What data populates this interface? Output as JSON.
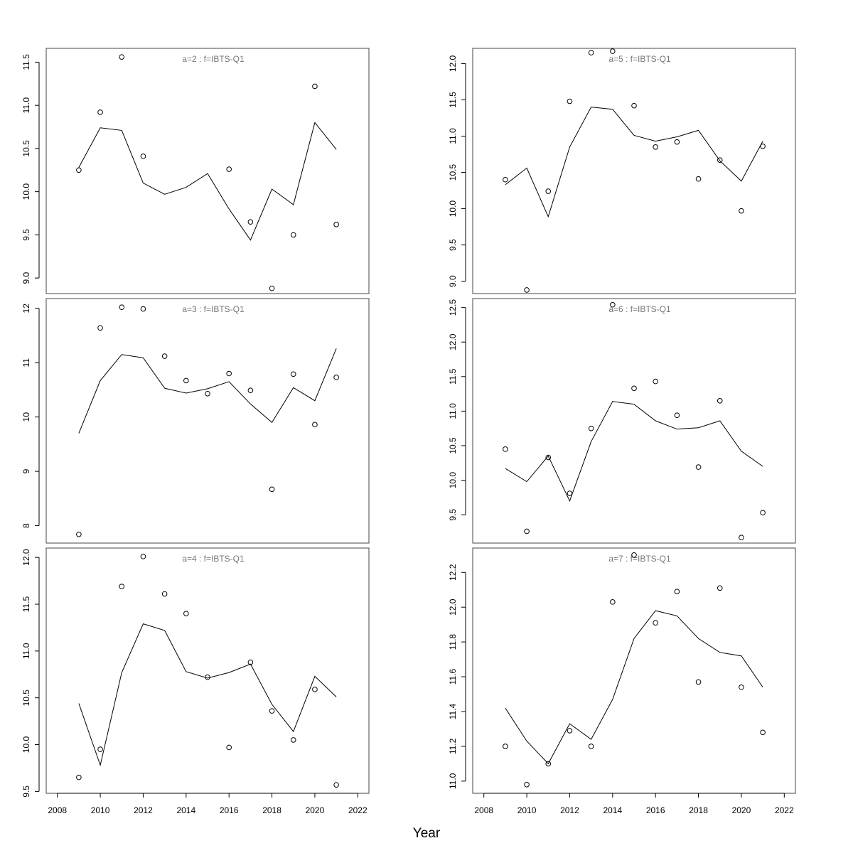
{
  "xlabel": "Year",
  "chart_data": [
    {
      "type": "line",
      "title": "a=2  :  f=IBTS-Q1",
      "ylabel": "",
      "x": [
        2009,
        2010,
        2011,
        2012,
        2013,
        2014,
        2015,
        2016,
        2017,
        2018,
        2019,
        2020,
        2021
      ],
      "series": [
        {
          "kind": "line",
          "values": [
            10.28,
            10.74,
            10.71,
            10.1,
            9.97,
            10.05,
            10.21,
            9.8,
            9.44,
            10.03,
            9.85,
            10.8,
            10.49
          ]
        },
        {
          "kind": "points",
          "values": [
            10.25,
            10.92,
            11.56,
            10.41,
            null,
            null,
            null,
            10.26,
            9.65,
            8.88,
            9.5,
            11.22,
            9.62
          ]
        }
      ],
      "yticks": [
        9.0,
        9.5,
        10.0,
        10.5,
        11.0,
        11.5
      ],
      "ytick_labels": [
        "9.0",
        "9.5",
        "10.0",
        "10.5",
        "11.0",
        "11.5"
      ],
      "ylim": [
        8.82,
        11.66
      ]
    },
    {
      "type": "line",
      "title": "a=5  :  f=IBTS-Q1",
      "ylabel": "",
      "x": [
        2009,
        2010,
        2011,
        2012,
        2013,
        2014,
        2015,
        2016,
        2017,
        2018,
        2019,
        2020,
        2021
      ],
      "series": [
        {
          "kind": "line",
          "values": [
            10.33,
            10.56,
            9.89,
            10.85,
            11.4,
            11.37,
            11.01,
            10.93,
            10.99,
            11.08,
            10.66,
            10.38,
            10.93
          ]
        },
        {
          "kind": "points",
          "values": [
            10.4,
            8.88,
            10.24,
            11.48,
            12.15,
            12.17,
            11.42,
            10.85,
            10.92,
            10.41,
            10.67,
            9.97,
            10.86
          ]
        }
      ],
      "yticks": [
        9.0,
        9.5,
        10.0,
        10.5,
        11.0,
        11.5,
        12.0
      ],
      "ytick_labels": [
        "9.0",
        "9.5",
        "10.0",
        "10.5",
        "11.0",
        "11.5",
        "12.0"
      ],
      "ylim": [
        8.83,
        12.21
      ]
    },
    {
      "type": "line",
      "title": "a=3  :  f=IBTS-Q1",
      "ylabel": "",
      "x": [
        2009,
        2010,
        2011,
        2012,
        2013,
        2014,
        2015,
        2016,
        2017,
        2018,
        2019,
        2020,
        2021
      ],
      "series": [
        {
          "kind": "line",
          "values": [
            9.7,
            10.67,
            11.15,
            11.09,
            10.53,
            10.44,
            10.52,
            10.65,
            10.24,
            9.9,
            10.54,
            10.3,
            11.26
          ]
        },
        {
          "kind": "points",
          "values": [
            7.84,
            11.64,
            12.02,
            11.99,
            11.12,
            10.67,
            10.43,
            10.8,
            10.49,
            8.67,
            10.79,
            9.86,
            10.73
          ]
        }
      ],
      "yticks": [
        8,
        9,
        10,
        11,
        12
      ],
      "ytick_labels": [
        "8",
        "9",
        "10",
        "11",
        "12"
      ],
      "ylim": [
        7.68,
        12.18
      ]
    },
    {
      "type": "line",
      "title": "a=6  :  f=IBTS-Q1",
      "ylabel": "",
      "x": [
        2009,
        2010,
        2011,
        2012,
        2013,
        2014,
        2015,
        2016,
        2017,
        2018,
        2019,
        2020,
        2021
      ],
      "series": [
        {
          "kind": "line",
          "values": [
            10.17,
            9.98,
            10.35,
            9.7,
            10.56,
            11.14,
            11.1,
            10.86,
            10.74,
            10.76,
            10.86,
            10.42,
            10.2
          ]
        },
        {
          "kind": "points",
          "values": [
            10.45,
            9.26,
            10.33,
            9.81,
            10.75,
            12.54,
            11.33,
            11.43,
            10.94,
            10.19,
            11.15,
            9.17,
            9.53
          ]
        }
      ],
      "yticks": [
        9.5,
        10.0,
        10.5,
        11.0,
        11.5,
        12.0,
        12.5
      ],
      "ytick_labels": [
        "9.5",
        "10.0",
        "10.5",
        "11.0",
        "11.5",
        "12.0",
        "12.5"
      ],
      "ylim": [
        9.09,
        12.63
      ]
    },
    {
      "type": "line",
      "title": "a=4  :  f=IBTS-Q1",
      "ylabel": "",
      "x": [
        2009,
        2010,
        2011,
        2012,
        2013,
        2014,
        2015,
        2016,
        2017,
        2018,
        2019,
        2020,
        2021
      ],
      "series": [
        {
          "kind": "line",
          "values": [
            10.44,
            9.78,
            10.77,
            11.29,
            11.22,
            10.78,
            10.71,
            10.77,
            10.86,
            10.43,
            10.14,
            10.73,
            10.51
          ]
        },
        {
          "kind": "points",
          "values": [
            9.65,
            9.95,
            11.69,
            12.01,
            11.61,
            11.4,
            10.72,
            9.97,
            10.88,
            10.36,
            10.05,
            10.59,
            9.57
          ]
        }
      ],
      "yticks": [
        9.5,
        10.0,
        10.5,
        11.0,
        11.5,
        12.0
      ],
      "ytick_labels": [
        "9.5",
        "10.0",
        "10.5",
        "11.0",
        "11.5",
        "12.0"
      ],
      "ylim": [
        9.48,
        12.1
      ]
    },
    {
      "type": "line",
      "title": "a=7  :  f=IBTS-Q1",
      "ylabel": "",
      "x": [
        2009,
        2010,
        2011,
        2012,
        2013,
        2014,
        2015,
        2016,
        2017,
        2018,
        2019,
        2020,
        2021
      ],
      "series": [
        {
          "kind": "line",
          "values": [
            11.42,
            11.23,
            11.1,
            11.33,
            11.24,
            11.47,
            11.82,
            11.98,
            11.95,
            11.82,
            11.74,
            11.72,
            11.54
          ]
        },
        {
          "kind": "points",
          "values": [
            11.2,
            10.98,
            11.1,
            11.29,
            11.2,
            12.03,
            12.3,
            11.91,
            12.09,
            11.57,
            12.11,
            11.54,
            11.28
          ]
        }
      ],
      "yticks": [
        11.0,
        11.2,
        11.4,
        11.6,
        11.8,
        12.0,
        12.2
      ],
      "ytick_labels": [
        "11.0",
        "11.2",
        "11.4",
        "11.6",
        "11.8",
        "12.0",
        "12.2"
      ],
      "ylim": [
        10.93,
        12.34
      ]
    }
  ],
  "x_axis": {
    "ticks": [
      2008,
      2010,
      2012,
      2014,
      2016,
      2018,
      2020,
      2022
    ],
    "tick_labels": [
      "2008",
      "2010",
      "2012",
      "2014",
      "2016",
      "2018",
      "2020",
      "2022"
    ],
    "xlim": [
      2007.48,
      2022.52
    ]
  }
}
